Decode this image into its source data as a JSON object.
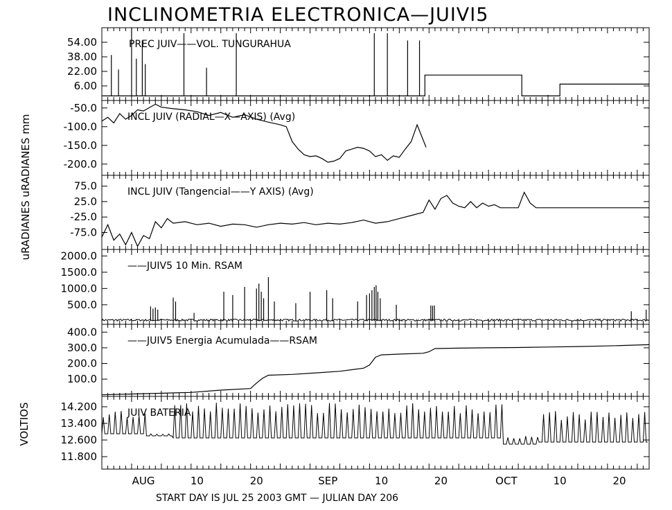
{
  "chart_title": "INCLINOMETRIA ELECTRONICA—JUIVI5",
  "y_axis_label_main": "uRADIANES uRADIANES mm",
  "y_axis_label_battery": "VOLTIOS",
  "footer": "START DAY IS JUL 25 2003 GMT    — JULIAN DAY 206",
  "x_tick_labels": [
    {
      "day": 7,
      "label": "AUG"
    },
    {
      "day": 16,
      "label": "10"
    },
    {
      "day": 26,
      "label": "20"
    },
    {
      "day": 38,
      "label": "SEP"
    },
    {
      "day": 47,
      "label": "10"
    },
    {
      "day": 57,
      "label": "20"
    },
    {
      "day": 68,
      "label": "OCT"
    },
    {
      "day": 77,
      "label": "10"
    },
    {
      "day": 87,
      "label": "20"
    }
  ],
  "chart_data": [
    {
      "type": "bar",
      "title": "PREC JUIV——VOL. TUNGURAHUA",
      "ylabel": "mm",
      "yticks": [
        "54.00",
        "38.00",
        "22.00",
        "6.00"
      ],
      "ylim": [
        -10,
        70
      ],
      "spikes": [
        {
          "day": 1.6,
          "value": 40
        },
        {
          "day": 2.8,
          "value": 24
        },
        {
          "day": 5.0,
          "value": 70
        },
        {
          "day": 5.8,
          "value": 36
        },
        {
          "day": 6.8,
          "value": 56
        },
        {
          "day": 7.3,
          "value": 30
        },
        {
          "day": 13.8,
          "value": 64
        },
        {
          "day": 17.6,
          "value": 26
        },
        {
          "day": 22.6,
          "value": 64
        },
        {
          "day": 45.8,
          "value": 64
        },
        {
          "day": 48.0,
          "value": 64
        },
        {
          "day": 51.4,
          "value": 56
        },
        {
          "day": 53.4,
          "value": 56
        }
      ],
      "step": {
        "x": [
          0,
          54.3,
          54.3,
          70.6,
          70.6,
          77,
          77,
          92
        ],
        "y": [
          -5,
          -5,
          18,
          18,
          -5,
          -5,
          8,
          8
        ]
      }
    },
    {
      "type": "line",
      "title": "INCL  JUIV (RADIAL—X—AXIS) (Avg)",
      "ylabel": "uRADIANES",
      "yticks": [
        "-50.0",
        "-100.0",
        "-150.0",
        "-200.0"
      ],
      "ylim": [
        -230,
        -30
      ],
      "x": [
        0,
        1,
        2,
        3,
        4,
        5,
        6,
        7,
        9,
        10,
        12,
        14,
        16,
        18,
        20,
        22,
        24,
        26,
        28,
        30,
        31,
        32,
        33,
        34,
        35,
        36,
        37,
        38,
        39,
        40,
        41,
        42,
        43,
        44,
        45,
        46,
        47,
        48,
        49,
        50,
        51,
        52,
        53,
        54.5
      ],
      "y": [
        -85,
        -75,
        -90,
        -65,
        -80,
        -70,
        -55,
        -58,
        -40,
        -48,
        -52,
        -55,
        -60,
        -70,
        -62,
        -75,
        -68,
        -80,
        -88,
        -95,
        -100,
        -140,
        -160,
        -175,
        -180,
        -178,
        -185,
        -195,
        -192,
        -185,
        -165,
        -160,
        -155,
        -158,
        -165,
        -180,
        -175,
        -190,
        -178,
        -182,
        -160,
        -140,
        -95,
        -155
      ]
    },
    {
      "type": "line",
      "title": "INCL JUIV (Tangencial——Y AXIS) (Avg)",
      "ylabel": "uRADIANES",
      "yticks": [
        "75.0",
        "25.0",
        "-25.0",
        "-75.0"
      ],
      "ylim": [
        -130,
        110
      ],
      "x": [
        0,
        1,
        2,
        3,
        4,
        5,
        6,
        7,
        8,
        9,
        10,
        11,
        12,
        14,
        16,
        18,
        20,
        22,
        24,
        26,
        28,
        30,
        32,
        34,
        36,
        38,
        40,
        42,
        44,
        46,
        48,
        50,
        52,
        54,
        55,
        56,
        57,
        58,
        59,
        60,
        61,
        62,
        63,
        64,
        65,
        66,
        67,
        68,
        70,
        71,
        72,
        73,
        92
      ],
      "y": [
        -90,
        -50,
        -100,
        -80,
        -115,
        -75,
        -120,
        -85,
        -95,
        -40,
        -60,
        -30,
        -45,
        -40,
        -50,
        -45,
        -55,
        -48,
        -50,
        -58,
        -50,
        -45,
        -48,
        -43,
        -50,
        -45,
        -48,
        -43,
        -35,
        -45,
        -40,
        -30,
        -20,
        -10,
        30,
        0,
        35,
        45,
        20,
        10,
        5,
        25,
        5,
        20,
        10,
        15,
        5,
        5,
        5,
        55,
        20,
        5,
        5
      ]
    },
    {
      "type": "bar",
      "title": "——JUIV5  10 Min. RSAM",
      "ylabel": "",
      "yticks": [
        "2000.0",
        "1500.0",
        "1000.0",
        "500.0"
      ],
      "ylim": [
        -100,
        2200
      ],
      "baseline_noise": 60,
      "spikes": [
        {
          "day": 8.2,
          "value": 450
        },
        {
          "day": 8.6,
          "value": 380
        },
        {
          "day": 9.0,
          "value": 420
        },
        {
          "day": 9.4,
          "value": 350
        },
        {
          "day": 12.0,
          "value": 720
        },
        {
          "day": 12.4,
          "value": 600
        },
        {
          "day": 15.5,
          "value": 250
        },
        {
          "day": 20.5,
          "value": 900
        },
        {
          "day": 22.0,
          "value": 800
        },
        {
          "day": 24.0,
          "value": 1050
        },
        {
          "day": 26.0,
          "value": 1000
        },
        {
          "day": 26.4,
          "value": 1150
        },
        {
          "day": 26.8,
          "value": 900
        },
        {
          "day": 27.2,
          "value": 700
        },
        {
          "day": 28.0,
          "value": 1350
        },
        {
          "day": 29.0,
          "value": 600
        },
        {
          "day": 32.6,
          "value": 550
        },
        {
          "day": 35.0,
          "value": 900
        },
        {
          "day": 37.8,
          "value": 950
        },
        {
          "day": 38.8,
          "value": 700
        },
        {
          "day": 43.0,
          "value": 600
        },
        {
          "day": 44.5,
          "value": 800
        },
        {
          "day": 45.0,
          "value": 850
        },
        {
          "day": 45.4,
          "value": 950
        },
        {
          "day": 45.8,
          "value": 1050
        },
        {
          "day": 46.1,
          "value": 1100
        },
        {
          "day": 46.4,
          "value": 900
        },
        {
          "day": 46.8,
          "value": 700
        },
        {
          "day": 49.5,
          "value": 500
        },
        {
          "day": 55.3,
          "value": 480
        },
        {
          "day": 55.6,
          "value": 470
        },
        {
          "day": 55.9,
          "value": 480
        },
        {
          "day": 89.0,
          "value": 300
        },
        {
          "day": 91.5,
          "value": 350
        }
      ]
    },
    {
      "type": "line",
      "title": "——JUIV5 Energia Acumulada——RSAM",
      "ylabel": "",
      "yticks": [
        "400.0",
        "300.0",
        "200.0",
        "100.0"
      ],
      "ylim": [
        -10,
        450
      ],
      "x": [
        0,
        5,
        10,
        15,
        20,
        25,
        26,
        27,
        28,
        32,
        36,
        40,
        44,
        45,
        46,
        47,
        50,
        54,
        55,
        56,
        60,
        65,
        70,
        75,
        80,
        85,
        92
      ],
      "y": [
        0,
        5,
        10,
        15,
        30,
        40,
        75,
        105,
        125,
        130,
        140,
        150,
        170,
        190,
        240,
        255,
        260,
        265,
        275,
        295,
        298,
        300,
        302,
        305,
        308,
        312,
        320
      ]
    },
    {
      "type": "line",
      "title": "JUIV BATERIA",
      "ylabel": "VOLTIOS",
      "yticks": [
        "14.200",
        "13.400",
        "12.600",
        "11.800"
      ],
      "ylim": [
        11.2,
        14.7
      ],
      "daily_cycle": true,
      "segments": [
        {
          "from": 0,
          "to": 7.5,
          "low": 12.9,
          "high": 14.0
        },
        {
          "from": 7.5,
          "to": 12.0,
          "low": 12.8,
          "high": 12.9
        },
        {
          "from": 12.0,
          "to": 67.5,
          "low": 12.7,
          "high": 14.4
        },
        {
          "from": 67.5,
          "to": 73.5,
          "low": 12.4,
          "high": 12.8
        },
        {
          "from": 73.5,
          "to": 92,
          "low": 12.5,
          "high": 14.0
        }
      ]
    }
  ]
}
